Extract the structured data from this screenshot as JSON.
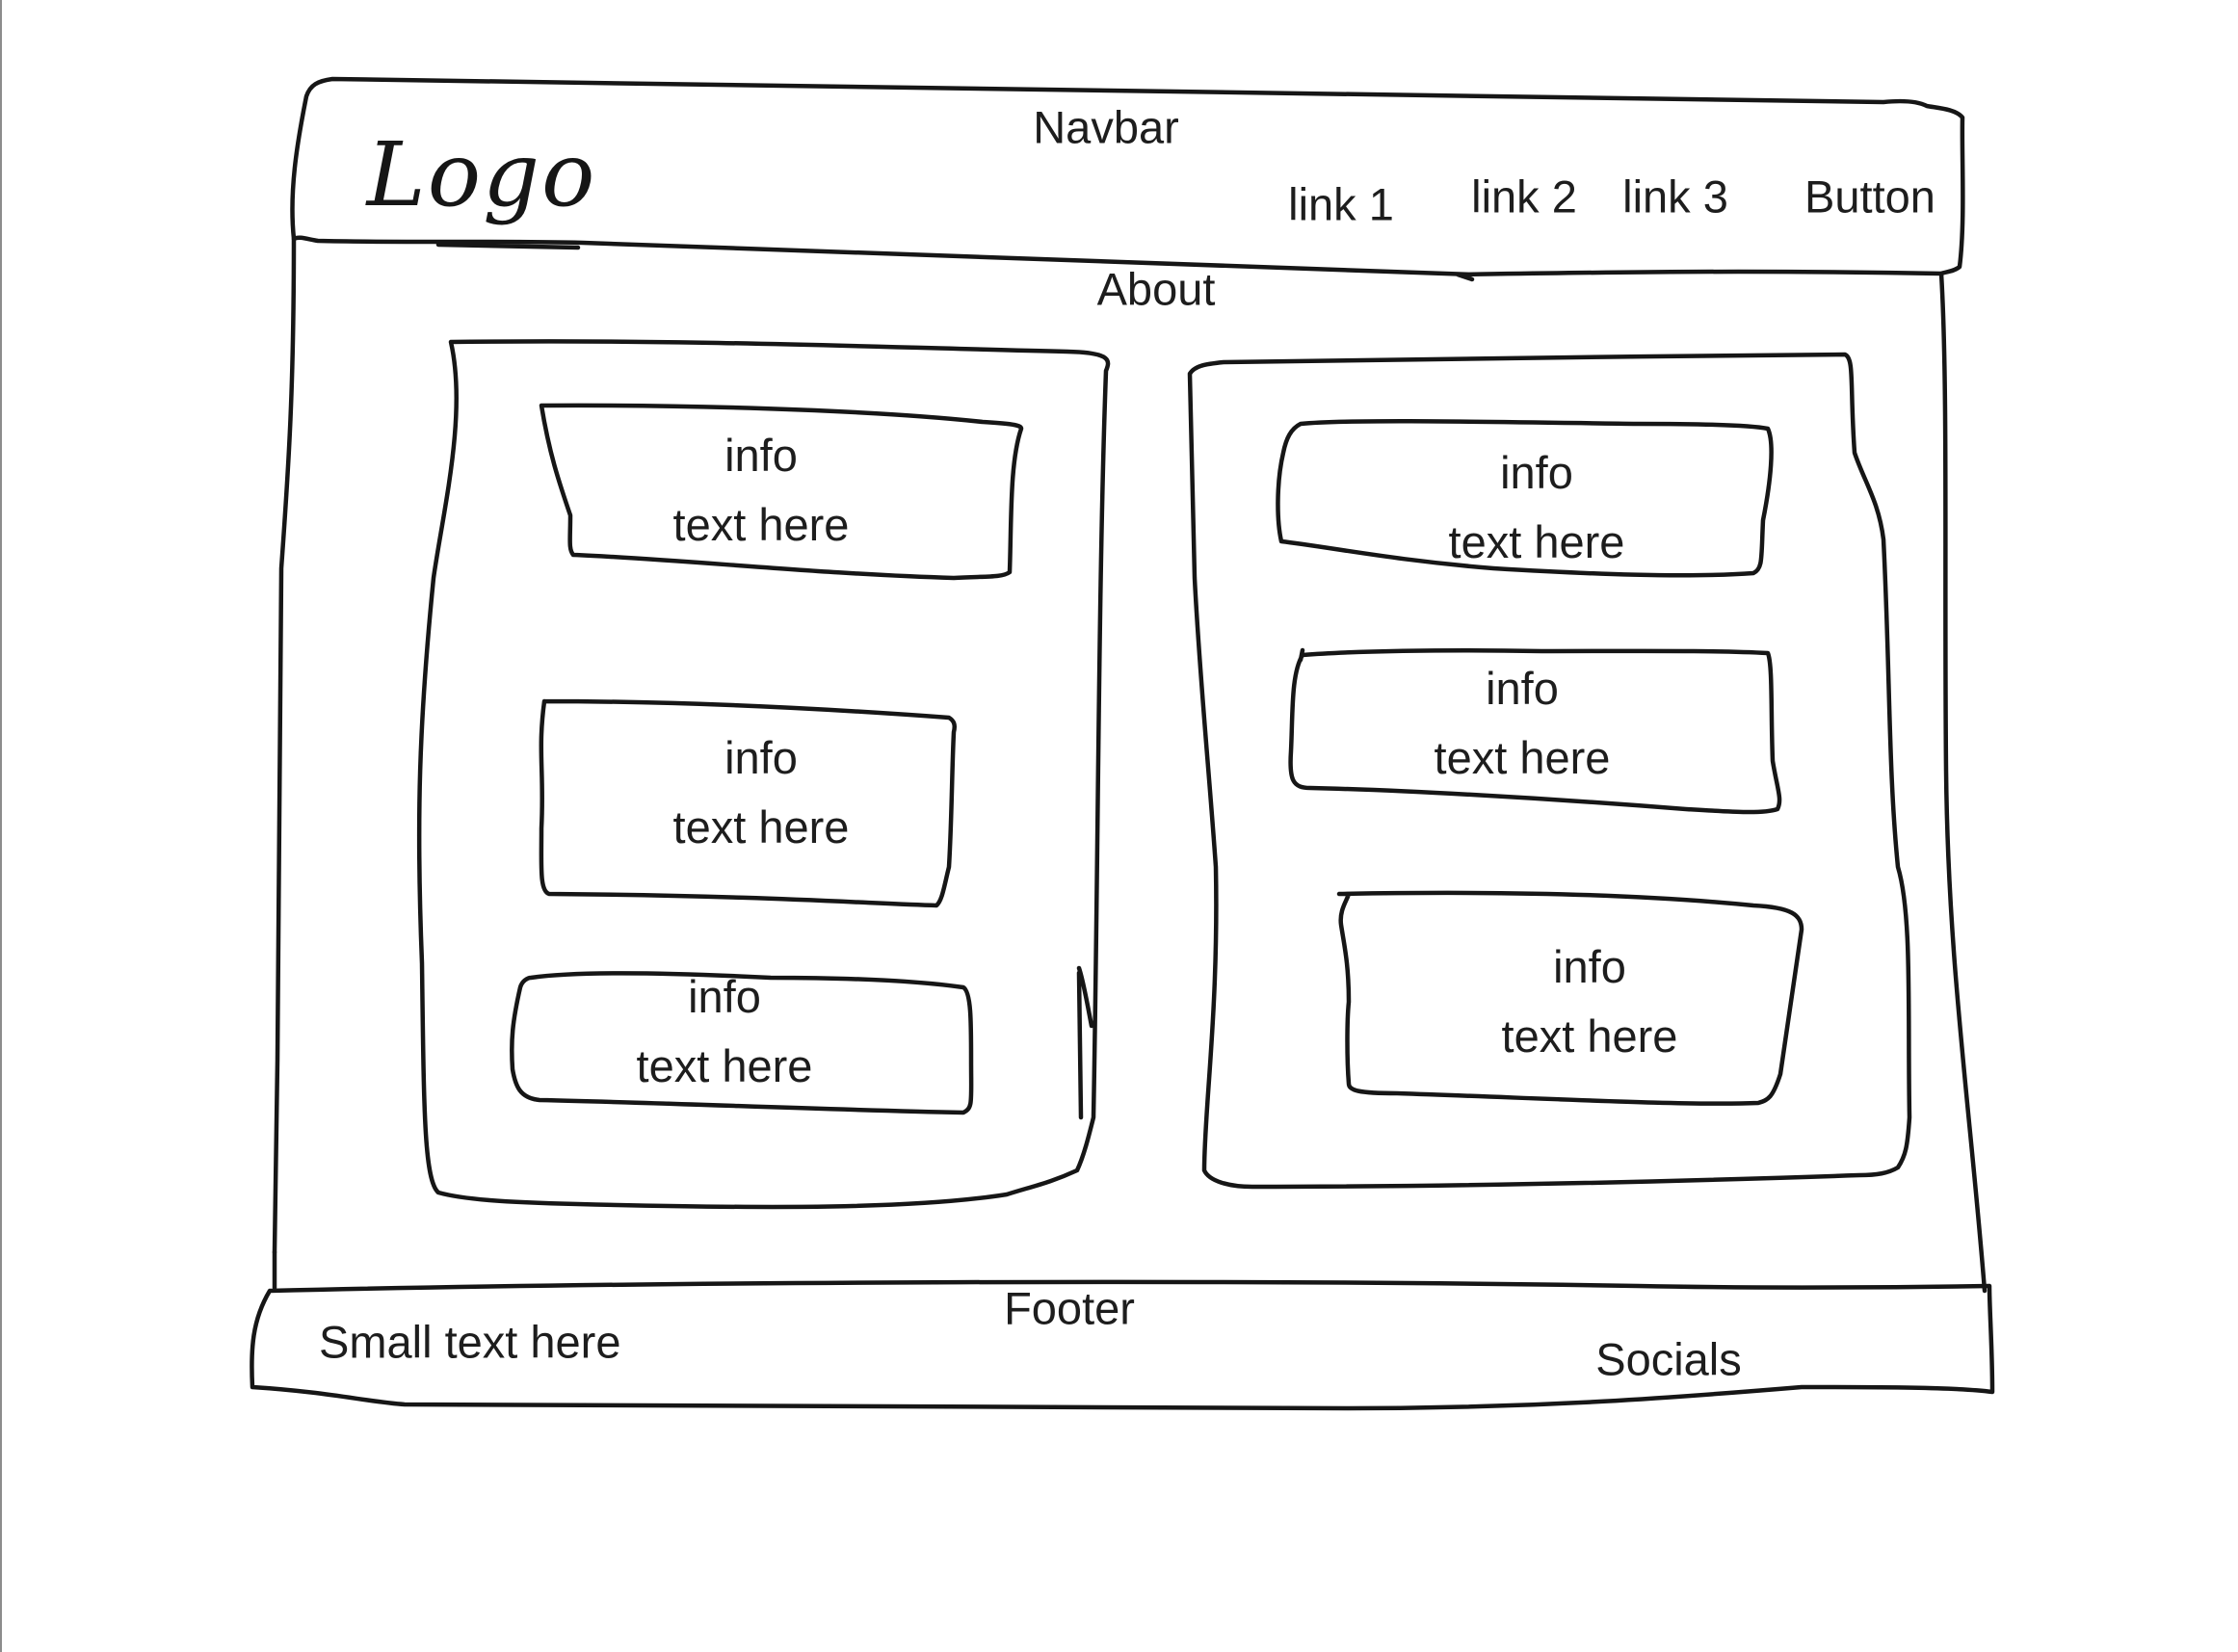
{
  "navbar": {
    "label": "Navbar",
    "logo": "Logo",
    "links": [
      "link 1",
      "link 2",
      "link 3"
    ],
    "button": "Button"
  },
  "about": {
    "label": "About",
    "left_column": [
      {
        "line1": "info",
        "line2": "text here"
      },
      {
        "line1": "info",
        "line2": "text here"
      },
      {
        "line1": "info",
        "line2": "text here"
      }
    ],
    "right_column": [
      {
        "line1": "info",
        "line2": "text here"
      },
      {
        "line1": "info",
        "line2": "text here"
      },
      {
        "line1": "info",
        "line2": "text here"
      }
    ]
  },
  "footer": {
    "label": "Footer",
    "small_text": "Small text here",
    "socials": "Socials"
  }
}
